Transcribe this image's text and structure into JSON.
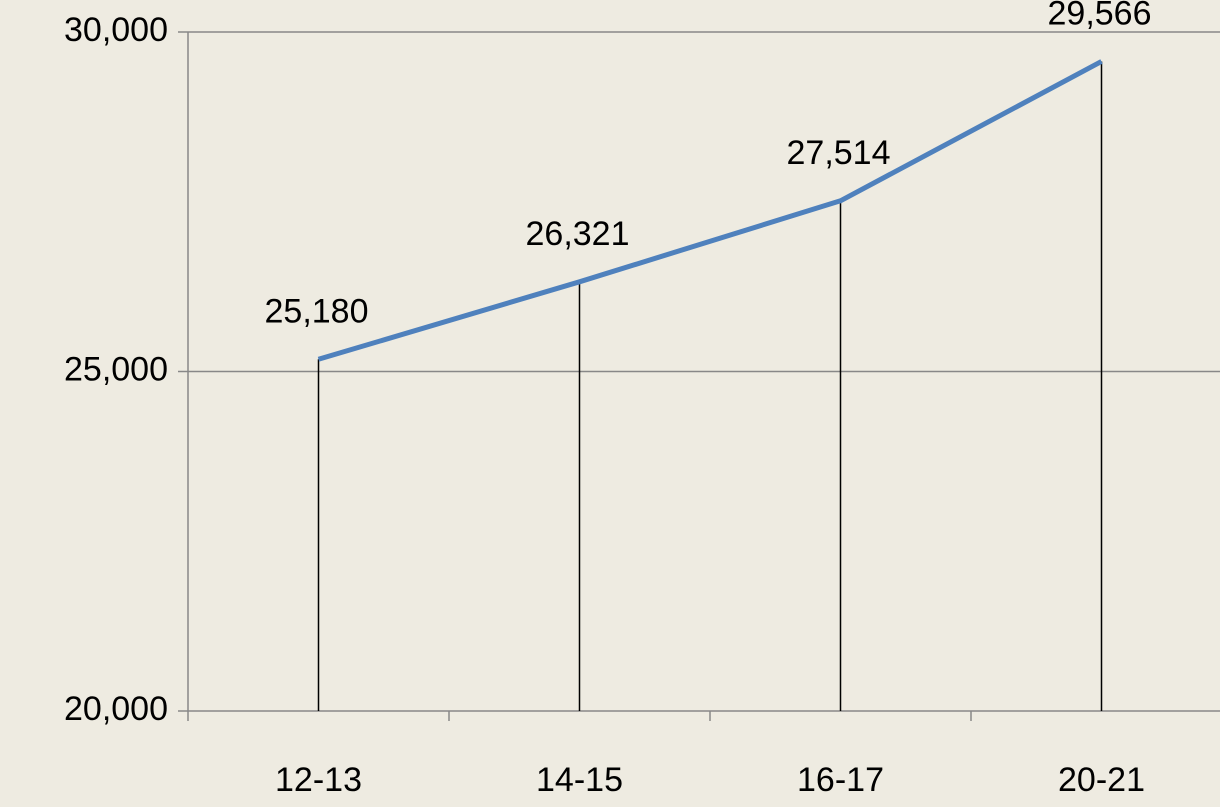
{
  "chart_data": {
    "type": "line",
    "categories": [
      "12-13",
      "14-15",
      "16-17",
      "20-21"
    ],
    "series": [
      {
        "color": "#4f81bd",
        "values": [
          25180,
          26321,
          27514,
          29566
        ],
        "value_labels": [
          "25,180",
          "26,321",
          "27,514",
          "29,566"
        ]
      }
    ],
    "ylim": [
      20000,
      30000
    ],
    "yticks": [
      {
        "value": 20000,
        "label": "20,000"
      },
      {
        "value": 25000,
        "label": "25,000"
      },
      {
        "value": 30000,
        "label": "30,000"
      }
    ],
    "grid": true,
    "drop_lines": true
  }
}
